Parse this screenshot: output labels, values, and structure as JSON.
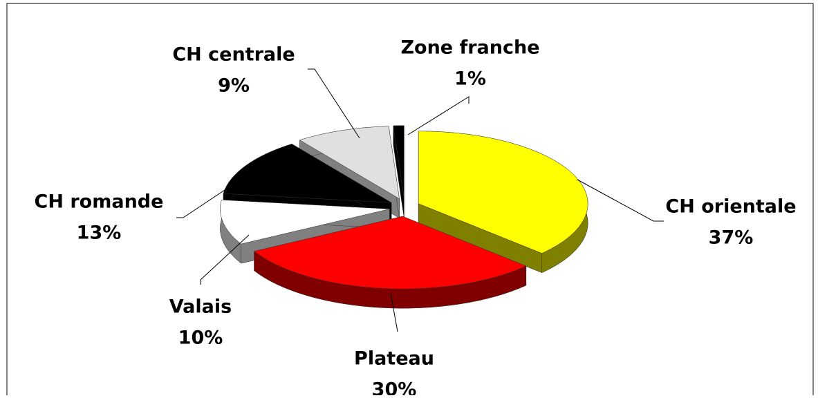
{
  "chart_data": {
    "type": "pie",
    "categories": [
      "CH orientale",
      "Plateau",
      "Valais",
      "CH romande",
      "CH centrale",
      "Zone franche"
    ],
    "values": [
      37,
      30,
      10,
      13,
      9,
      1
    ],
    "value_labels": [
      "37%",
      "30%",
      "10%",
      "13%",
      "9%",
      "1%"
    ],
    "colors": [
      "#ffff00",
      "#ff0000",
      "#ffffff",
      "#000000",
      "#e0e0e0",
      "#000000"
    ]
  }
}
